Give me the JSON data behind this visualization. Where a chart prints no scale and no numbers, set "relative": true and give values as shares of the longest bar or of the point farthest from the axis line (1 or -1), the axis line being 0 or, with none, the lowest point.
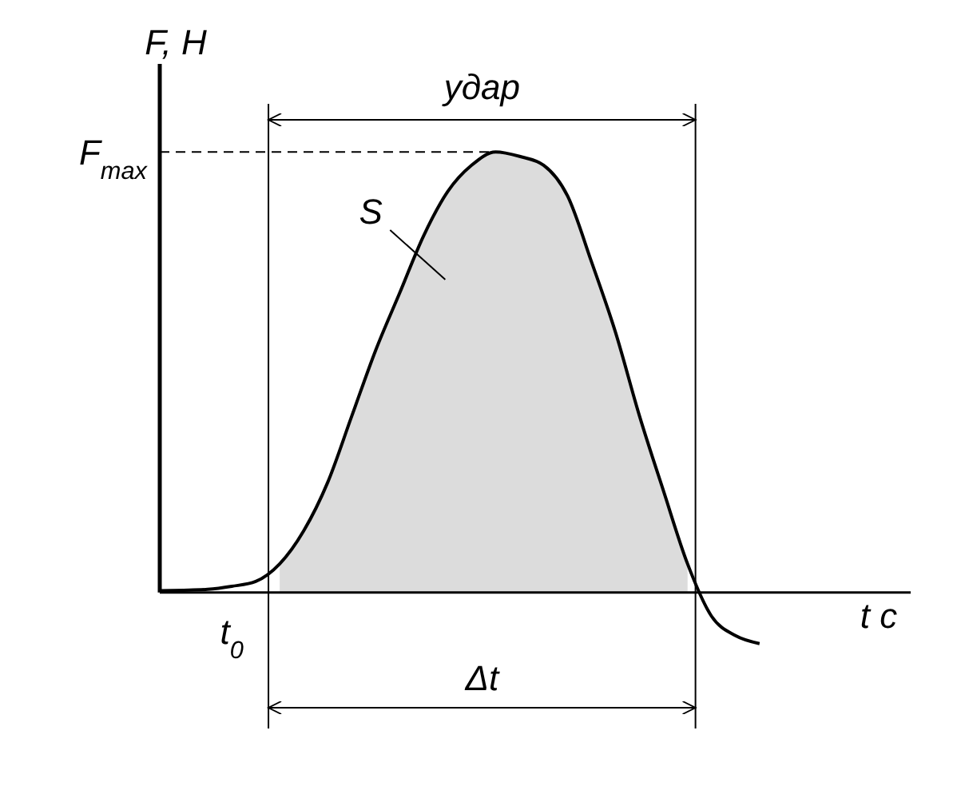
{
  "chart_data": {
    "type": "line",
    "relative": true,
    "xlabel": "t с",
    "ylabel": "F, Н",
    "categories": [
      null,
      null,
      null,
      null,
      null,
      null,
      null,
      null,
      null,
      null,
      null,
      null,
      null,
      null,
      null,
      null,
      null,
      null,
      null,
      null,
      null,
      null,
      null,
      null,
      null,
      null
    ],
    "series": [
      {
        "type": "area",
        "color": "#dcdcdc",
        "values": [
          null,
          null,
          null,
          null,
          null,
          0.065,
          0.14,
          0.25,
          0.4,
          0.55,
          0.68,
          0.81,
          0.91,
          0.97,
          1.0,
          0.99,
          0.97,
          0.9,
          0.75,
          0.59,
          0.4,
          0.23,
          0.065,
          null,
          null,
          null
        ]
      },
      {
        "type": "line",
        "color": "#000000",
        "values": [
          0.004,
          0.005,
          0.007,
          0.014,
          0.025,
          0.065,
          0.14,
          0.25,
          0.4,
          0.55,
          0.68,
          0.81,
          0.91,
          0.97,
          1.0,
          0.99,
          0.97,
          0.9,
          0.75,
          0.59,
          0.4,
          0.23,
          0.065,
          -0.054,
          -0.098,
          -0.116
        ]
      }
    ],
    "ref_lines": [
      {
        "axis": "y",
        "value": 1,
        "label": "F$_{max}$",
        "line_style": "dashed",
        "color": "#000000"
      }
    ],
    "annotations": [
      "удар",
      "Δt",
      "S",
      "t$_{0}$"
    ],
    "marker": "none"
  }
}
